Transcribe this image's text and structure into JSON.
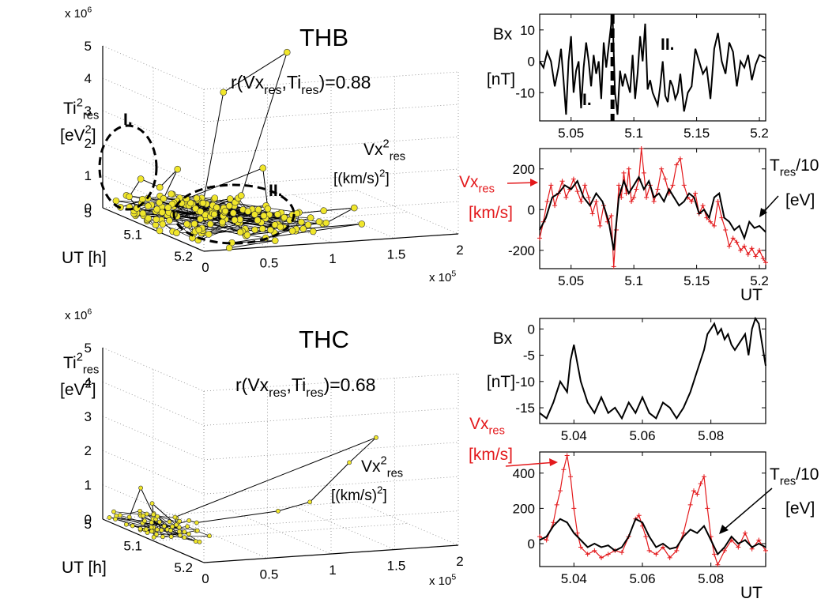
{
  "colors": {
    "marker": "#f0e62a",
    "red": "#e3191c",
    "black": "#000000"
  },
  "chart_data": [
    {
      "type": "scatter",
      "subtype": "3d-line-scatter",
      "title": "THB",
      "annotation": "r(Vx",
      "annotation_sub1": "res",
      "annotation_mid": ",Ti",
      "annotation_sub2": "res",
      "annotation_end": ")=0.88",
      "zlabel_main": "Ti",
      "zlabel_sup": "2",
      "zlabel_sub": "res",
      "zlabel_unit": "[eV",
      "zlabel_unit_sup": "2",
      "zlabel_unit_end": "]",
      "xlabel_main": "Vx",
      "xlabel_sup": "2",
      "xlabel_sub": "res",
      "xlabel_unit": "[(km/s)",
      "xlabel_unit_sup": "2",
      "xlabel_unit_end": "]",
      "ylabel": "UT [h]",
      "z_exponent": "x 10",
      "z_exponent_sup": "6",
      "x_exponent": "x 10",
      "x_exponent_sup": "5",
      "z_ticks": [
        "0",
        "1",
        "2",
        "3",
        "4",
        "5"
      ],
      "x_ticks": [
        "0",
        "0.5",
        "1",
        "1.5",
        "2"
      ],
      "y_ticks": [
        "5",
        "5.1",
        "5.2"
      ],
      "region_labels": [
        "I.",
        "II."
      ],
      "points": [
        {
          "vx2": 0.15,
          "ut": 5.03,
          "ti2": 0.15
        },
        {
          "vx2": 0.05,
          "ut": 5.04,
          "ti2": 0.6
        },
        {
          "vx2": 0.1,
          "ut": 5.05,
          "ti2": 1.2
        },
        {
          "vx2": 0.25,
          "ut": 5.05,
          "ti2": 0.9
        },
        {
          "vx2": 0.35,
          "ut": 5.06,
          "ti2": 1.5
        },
        {
          "vx2": 0.2,
          "ut": 5.07,
          "ti2": 0.7
        },
        {
          "vx2": 0.55,
          "ut": 5.06,
          "ti2": 0.4
        },
        {
          "vx2": 0.75,
          "ut": 5.05,
          "ti2": 3.7
        },
        {
          "vx2": 1.25,
          "ut": 5.05,
          "ti2": 4.8
        },
        {
          "vx2": 0.85,
          "ut": 5.06,
          "ti2": 0.55
        },
        {
          "vx2": 0.45,
          "ut": 5.08,
          "ti2": 0.3
        },
        {
          "vx2": 0.3,
          "ut": 5.09,
          "ti2": 0.8
        },
        {
          "vx2": 1.1,
          "ut": 5.04,
          "ti2": 1.2
        },
        {
          "vx2": 0.9,
          "ut": 5.1,
          "ti2": 0.4
        },
        {
          "vx2": 0.6,
          "ut": 5.11,
          "ti2": 0.2
        },
        {
          "vx2": 0.4,
          "ut": 5.12,
          "ti2": 0.5
        },
        {
          "vx2": 0.7,
          "ut": 5.13,
          "ti2": 0.3
        },
        {
          "vx2": 1.05,
          "ut": 5.12,
          "ti2": 0.35
        },
        {
          "vx2": 1.3,
          "ut": 5.11,
          "ti2": 0.3
        },
        {
          "vx2": 1.5,
          "ut": 5.12,
          "ti2": 0.4
        },
        {
          "vx2": 1.2,
          "ut": 5.14,
          "ti2": 0.15
        },
        {
          "vx2": 0.8,
          "ut": 5.15,
          "ti2": 0.2
        },
        {
          "vx2": 0.5,
          "ut": 5.16,
          "ti2": 0.1
        },
        {
          "vx2": 0.9,
          "ut": 5.17,
          "ti2": 0.25
        },
        {
          "vx2": 1.4,
          "ut": 5.16,
          "ti2": 0.2
        },
        {
          "vx2": 0.3,
          "ut": 5.18,
          "ti2": 0.05
        },
        {
          "vx2": 0.6,
          "ut": 5.19,
          "ti2": 0.1
        },
        {
          "vx2": 0.2,
          "ut": 5.2,
          "ti2": 0.05
        }
      ]
    },
    {
      "type": "line",
      "title": "",
      "ylabel_main": "Bx",
      "ylabel_unit": "[nT]",
      "x_ticks": [
        "5.05",
        "5.1",
        "5.15",
        "5.2"
      ],
      "y_ticks": [
        "10",
        "0",
        "-10"
      ],
      "xlim": [
        5.025,
        5.205
      ],
      "ylim": [
        -19,
        15
      ],
      "marker_x": 5.083,
      "region_labels": [
        "I.",
        "II."
      ],
      "series": [
        {
          "x": [
            5.025,
            5.028,
            5.031,
            5.034,
            5.037,
            5.04,
            5.042,
            5.044,
            5.046,
            5.048,
            5.05,
            5.052,
            5.054,
            5.056,
            5.058,
            5.06,
            5.062,
            5.064,
            5.066,
            5.068,
            5.07,
            5.072,
            5.074,
            5.076,
            5.078,
            5.08,
            5.082,
            5.083,
            5.085,
            5.087,
            5.089,
            5.091,
            5.093,
            5.095,
            5.097,
            5.099,
            5.101,
            5.103,
            5.105,
            5.107,
            5.109,
            5.111,
            5.113,
            5.115,
            5.117,
            5.119,
            5.121,
            5.123,
            5.125,
            5.127,
            5.129,
            5.131,
            5.133,
            5.135,
            5.137,
            5.14,
            5.143,
            5.146,
            5.149,
            5.152,
            5.155,
            5.158,
            5.161,
            5.164,
            5.167,
            5.17,
            5.173,
            5.176,
            5.179,
            5.182,
            5.185,
            5.188,
            5.191,
            5.194,
            5.197,
            5.2,
            5.205
          ],
          "y": [
            0,
            -2,
            3,
            0,
            -8,
            -2,
            4,
            -6,
            -17,
            0,
            8,
            -10,
            -3,
            0,
            -15,
            -2,
            6,
            0,
            -8,
            2,
            -4,
            0,
            -12,
            6,
            -2,
            5,
            12,
            15,
            -10,
            -17,
            -3,
            -8,
            -4,
            -7,
            -10,
            2,
            -12,
            -4,
            8,
            0,
            12,
            -9,
            -6,
            -10,
            -12,
            -14,
            -8,
            0,
            -11,
            -13,
            -6,
            -8,
            -12,
            -10,
            -4,
            -16,
            -10,
            -8,
            4,
            0,
            -4,
            -2,
            -12,
            4,
            9,
            0,
            -4,
            6,
            3,
            -8,
            0,
            -2,
            2,
            -6,
            -1,
            2,
            1
          ]
        }
      ]
    },
    {
      "type": "line",
      "title": "",
      "xlabel": "UT",
      "x_ticks": [
        "5.05",
        "5.1",
        "5.15",
        "5.2"
      ],
      "y_ticks": [
        "200",
        "0",
        "-200"
      ],
      "xlim": [
        5.025,
        5.205
      ],
      "ylim": [
        -290,
        300
      ],
      "label_red_main": "Vx",
      "label_red_sub": "res",
      "label_red_unit": "[km/s]",
      "label_black_main": "T",
      "label_black_sub": "res",
      "label_black_end": "/10",
      "label_black_unit": "[eV]",
      "series": [
        {
          "color": "red",
          "x": [
            5.025,
            5.028,
            5.031,
            5.034,
            5.037,
            5.04,
            5.043,
            5.046,
            5.049,
            5.052,
            5.055,
            5.058,
            5.061,
            5.064,
            5.067,
            5.07,
            5.073,
            5.076,
            5.079,
            5.082,
            5.084,
            5.086,
            5.088,
            5.09,
            5.092,
            5.094,
            5.096,
            5.098,
            5.1,
            5.102,
            5.104,
            5.106,
            5.108,
            5.11,
            5.113,
            5.116,
            5.119,
            5.122,
            5.125,
            5.128,
            5.131,
            5.134,
            5.137,
            5.14,
            5.143,
            5.146,
            5.149,
            5.152,
            5.155,
            5.158,
            5.161,
            5.164,
            5.167,
            5.17,
            5.173,
            5.176,
            5.179,
            5.182,
            5.185,
            5.188,
            5.191,
            5.194,
            5.197,
            5.2,
            5.203,
            5.205
          ],
          "y": [
            -140,
            -60,
            40,
            120,
            20,
            80,
            140,
            60,
            100,
            150,
            90,
            40,
            120,
            60,
            -20,
            40,
            -80,
            20,
            -60,
            -30,
            -280,
            -100,
            120,
            60,
            180,
            80,
            200,
            40,
            60,
            100,
            150,
            300,
            180,
            60,
            120,
            40,
            100,
            200,
            150,
            80,
            120,
            220,
            250,
            120,
            60,
            40,
            80,
            -20,
            20,
            -40,
            -60,
            -80,
            40,
            -40,
            -100,
            -180,
            -140,
            -160,
            -200,
            -180,
            -220,
            -190,
            -230,
            -200,
            -240,
            -260
          ]
        },
        {
          "color": "black",
          "x": [
            5.025,
            5.03,
            5.035,
            5.04,
            5.045,
            5.05,
            5.055,
            5.06,
            5.065,
            5.07,
            5.075,
            5.08,
            5.084,
            5.088,
            5.092,
            5.096,
            5.1,
            5.104,
            5.108,
            5.112,
            5.116,
            5.12,
            5.124,
            5.128,
            5.132,
            5.136,
            5.14,
            5.144,
            5.148,
            5.152,
            5.156,
            5.16,
            5.164,
            5.168,
            5.172,
            5.176,
            5.18,
            5.184,
            5.188,
            5.192,
            5.196,
            5.2,
            5.205
          ],
          "y": [
            -100,
            -40,
            60,
            80,
            120,
            100,
            140,
            60,
            20,
            80,
            40,
            -60,
            -200,
            60,
            140,
            80,
            120,
            160,
            100,
            140,
            60,
            80,
            40,
            100,
            60,
            20,
            40,
            80,
            60,
            -20,
            0,
            -40,
            60,
            80,
            -40,
            -60,
            -100,
            -80,
            -140,
            -60,
            -90,
            -80,
            -110
          ]
        }
      ]
    },
    {
      "type": "scatter",
      "subtype": "3d-line-scatter",
      "title": "THC",
      "annotation": "r(Vx",
      "annotation_sub1": "res",
      "annotation_mid": ",Ti",
      "annotation_sub2": "res",
      "annotation_end": ")=0.68",
      "zlabel_main": "Ti",
      "zlabel_sup": "2",
      "zlabel_sub": "res",
      "zlabel_unit": "[eV",
      "zlabel_unit_sup": "2",
      "zlabel_unit_end": "]",
      "xlabel_main": "Vx",
      "xlabel_sup": "2",
      "xlabel_sub": "res",
      "xlabel_unit": "[(km/s)",
      "xlabel_unit_sup": "2",
      "xlabel_unit_end": "]",
      "ylabel": "UT [h]",
      "z_exponent": "x 10",
      "z_exponent_sup": "6",
      "x_exponent": "x 10",
      "x_exponent_sup": "5",
      "z_ticks": [
        "0",
        "1",
        "2",
        "3",
        "4",
        "5"
      ],
      "x_ticks": [
        "0",
        "0.5",
        "1",
        "1.5",
        "2"
      ],
      "y_ticks": [
        "5",
        "5.1",
        "5.2"
      ],
      "points": [
        {
          "vx2": 0.05,
          "ut": 5.04,
          "ti2": 0.3
        },
        {
          "vx2": 0.1,
          "ut": 5.05,
          "ti2": 1.2
        },
        {
          "vx2": 0.2,
          "ut": 5.05,
          "ti2": 0.4
        },
        {
          "vx2": 0.15,
          "ut": 5.06,
          "ti2": 0.8
        },
        {
          "vx2": 0.3,
          "ut": 5.07,
          "ti2": 0.2
        },
        {
          "vx2": 0.25,
          "ut": 5.08,
          "ti2": 0.5
        },
        {
          "vx2": 1.95,
          "ut": 5.05,
          "ti2": 2.2
        },
        {
          "vx2": 1.7,
          "ut": 5.06,
          "ti2": 1.6
        },
        {
          "vx2": 1.35,
          "ut": 5.07,
          "ti2": 0.6
        },
        {
          "vx2": 1.1,
          "ut": 5.07,
          "ti2": 0.4
        },
        {
          "vx2": 0.5,
          "ut": 5.06,
          "ti2": 0.15
        },
        {
          "vx2": 0.4,
          "ut": 5.07,
          "ti2": 0.3
        },
        {
          "vx2": 0.15,
          "ut": 5.07,
          "ti2": 0.1
        }
      ]
    },
    {
      "type": "line",
      "title": "",
      "ylabel_main": "Bx",
      "ylabel_unit": "[nT]",
      "x_ticks": [
        "5.04",
        "5.06",
        "5.08"
      ],
      "y_ticks": [
        "0",
        "-5",
        "-10",
        "-15"
      ],
      "xlim": [
        5.03,
        5.096
      ],
      "ylim": [
        -18,
        2
      ],
      "series": [
        {
          "x": [
            5.03,
            5.032,
            5.034,
            5.036,
            5.038,
            5.039,
            5.04,
            5.042,
            5.044,
            5.046,
            5.048,
            5.05,
            5.052,
            5.054,
            5.056,
            5.058,
            5.06,
            5.062,
            5.064,
            5.066,
            5.068,
            5.07,
            5.072,
            5.074,
            5.076,
            5.078,
            5.079,
            5.08,
            5.081,
            5.082,
            5.083,
            5.084,
            5.085,
            5.086,
            5.087,
            5.088,
            5.089,
            5.09,
            5.091,
            5.092,
            5.093,
            5.094,
            5.096
          ],
          "y": [
            -16,
            -17,
            -14,
            -10,
            -12,
            -6,
            -3,
            -10,
            -14,
            -16,
            -13,
            -16,
            -15,
            -17,
            -14,
            -16,
            -13,
            -16,
            -17,
            -14,
            -15,
            -17,
            -15,
            -12,
            -8,
            -4,
            -1,
            0,
            1,
            -1,
            0,
            -2,
            -1,
            -3,
            -4,
            -3,
            -2,
            -1,
            -5,
            0,
            2,
            1,
            -7
          ]
        }
      ]
    },
    {
      "type": "line",
      "title": "",
      "xlabel": "UT",
      "x_ticks": [
        "5.04",
        "5.06",
        "5.08"
      ],
      "y_ticks": [
        "400",
        "200",
        "0"
      ],
      "xlim": [
        5.03,
        5.096
      ],
      "ylim": [
        -130,
        520
      ],
      "label_red_main": "Vx",
      "label_red_sub": "res",
      "label_red_unit": "[km/s]",
      "label_black_main": "T",
      "label_black_sub": "res",
      "label_black_end": "/10",
      "label_black_unit": "[eV]",
      "series": [
        {
          "color": "red",
          "x": [
            5.03,
            5.032,
            5.034,
            5.035,
            5.036,
            5.037,
            5.038,
            5.039,
            5.04,
            5.041,
            5.042,
            5.044,
            5.046,
            5.048,
            5.05,
            5.052,
            5.054,
            5.056,
            5.058,
            5.059,
            5.06,
            5.061,
            5.062,
            5.064,
            5.066,
            5.068,
            5.07,
            5.072,
            5.074,
            5.075,
            5.076,
            5.077,
            5.078,
            5.079,
            5.08,
            5.081,
            5.082,
            5.084,
            5.086,
            5.088,
            5.09,
            5.092,
            5.094,
            5.096
          ],
          "y": [
            40,
            20,
            120,
            220,
            300,
            420,
            500,
            380,
            200,
            60,
            -20,
            -60,
            -40,
            -80,
            -60,
            -40,
            -50,
            40,
            140,
            160,
            100,
            40,
            -40,
            -60,
            -20,
            -80,
            -40,
            60,
            220,
            300,
            280,
            340,
            380,
            200,
            40,
            -60,
            -120,
            -40,
            20,
            -20,
            60,
            -30,
            20,
            -40
          ]
        },
        {
          "color": "black",
          "x": [
            5.03,
            5.032,
            5.034,
            5.036,
            5.038,
            5.04,
            5.042,
            5.044,
            5.046,
            5.048,
            5.05,
            5.052,
            5.054,
            5.056,
            5.058,
            5.06,
            5.062,
            5.064,
            5.066,
            5.068,
            5.07,
            5.072,
            5.074,
            5.076,
            5.078,
            5.08,
            5.082,
            5.084,
            5.086,
            5.088,
            5.09,
            5.092,
            5.094,
            5.096
          ],
          "y": [
            20,
            40,
            100,
            140,
            120,
            60,
            20,
            -20,
            0,
            -20,
            -10,
            -40,
            -20,
            40,
            140,
            120,
            40,
            -20,
            0,
            -30,
            -20,
            40,
            80,
            60,
            100,
            20,
            -60,
            -20,
            40,
            0,
            20,
            -20,
            0,
            -20
          ]
        }
      ]
    }
  ]
}
